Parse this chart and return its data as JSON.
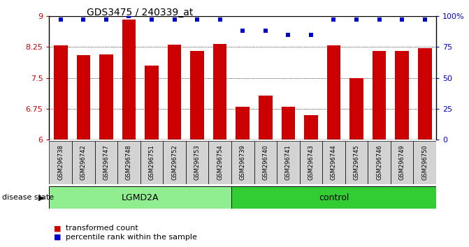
{
  "title": "GDS3475 / 240339_at",
  "samples": [
    "GSM296738",
    "GSM296742",
    "GSM296747",
    "GSM296748",
    "GSM296751",
    "GSM296752",
    "GSM296753",
    "GSM296754",
    "GSM296739",
    "GSM296740",
    "GSM296741",
    "GSM296743",
    "GSM296744",
    "GSM296745",
    "GSM296746",
    "GSM296749",
    "GSM296750"
  ],
  "bar_values": [
    8.28,
    8.05,
    8.07,
    8.92,
    7.8,
    8.3,
    8.15,
    8.32,
    6.8,
    7.07,
    6.8,
    6.6,
    8.28,
    7.5,
    8.15,
    8.15,
    8.22
  ],
  "percentile_values": [
    97,
    97,
    97,
    100,
    97,
    97,
    97,
    97,
    88,
    88,
    85,
    85,
    97,
    97,
    97,
    97,
    97
  ],
  "groups": [
    {
      "name": "LGMD2A",
      "start": 0,
      "end": 8,
      "color": "#90EE90"
    },
    {
      "name": "control",
      "start": 8,
      "end": 17,
      "color": "#32CD32"
    }
  ],
  "ylim_left": [
    6,
    9
  ],
  "ylim_right": [
    0,
    100
  ],
  "yticks_left": [
    6,
    6.75,
    7.5,
    8.25,
    9
  ],
  "ytick_labels_left": [
    "6",
    "6.75",
    "7.5",
    "8.25",
    "9"
  ],
  "yticks_right": [
    0,
    25,
    50,
    75,
    100
  ],
  "ytick_labels_right": [
    "0",
    "25",
    "50",
    "75",
    "100%"
  ],
  "bar_color": "#CC0000",
  "percentile_color": "#0000CC",
  "axis_color_left": "#CC0000",
  "axis_color_right": "#0000CC",
  "legend_labels": [
    "transformed count",
    "percentile rank within the sample"
  ],
  "disease_state_label": "disease state",
  "bar_width": 0.6,
  "lgmd2a_color": "#90EE90",
  "control_color": "#32CD32",
  "sample_box_color": "#D3D3D3"
}
